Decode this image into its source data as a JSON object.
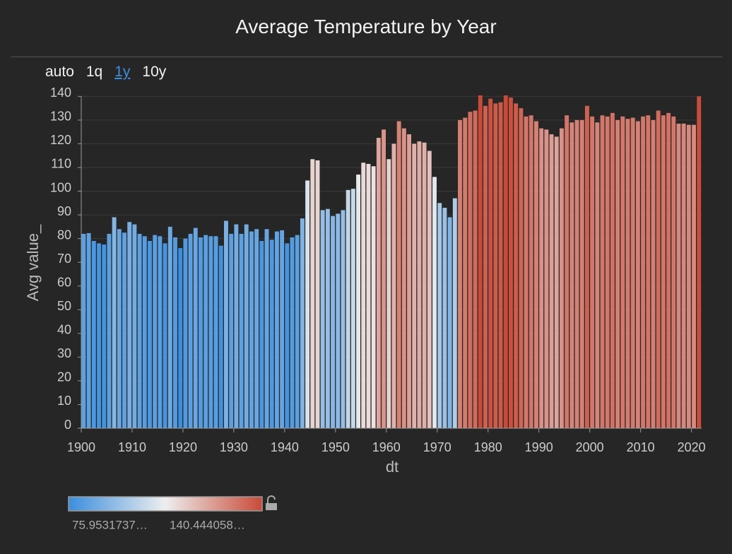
{
  "chart_data": {
    "type": "bar",
    "title": "Average Temperature by Year",
    "toolbar": {
      "options": [
        "auto",
        "1q",
        "1y",
        "10y"
      ],
      "active": 2
    },
    "x_label": "dt",
    "y_label": "Avg value_",
    "x": [
      1900,
      1901,
      1902,
      1903,
      1904,
      1905,
      1906,
      1907,
      1908,
      1909,
      1910,
      1911,
      1912,
      1913,
      1914,
      1915,
      1916,
      1917,
      1918,
      1919,
      1920,
      1921,
      1922,
      1923,
      1924,
      1925,
      1926,
      1927,
      1928,
      1929,
      1930,
      1931,
      1932,
      1933,
      1934,
      1935,
      1936,
      1937,
      1938,
      1939,
      1940,
      1941,
      1942,
      1943,
      1944,
      1945,
      1946,
      1947,
      1948,
      1949,
      1950,
      1951,
      1952,
      1953,
      1954,
      1955,
      1956,
      1957,
      1958,
      1959,
      1960,
      1961,
      1962,
      1963,
      1964,
      1965,
      1966,
      1967,
      1968,
      1969,
      1970,
      1971,
      1972,
      1973,
      1974,
      1975,
      1976,
      1977,
      1978,
      1979,
      1980,
      1981,
      1982,
      1983,
      1984,
      1985,
      1986,
      1987,
      1988,
      1989,
      1990,
      1991,
      1992,
      1993,
      1994,
      1995,
      1996,
      1997,
      1998,
      1999,
      2000,
      2001,
      2002,
      2003,
      2004,
      2005,
      2006,
      2007,
      2008,
      2009,
      2010,
      2011,
      2012,
      2013,
      2014,
      2015,
      2016,
      2017,
      2018,
      2019,
      2020,
      2021
    ],
    "values": [
      82,
      82.3,
      79,
      78,
      77.5,
      82,
      89,
      84,
      82.5,
      87,
      86,
      82,
      81,
      79,
      81.5,
      81,
      78,
      85,
      80.5,
      76,
      80,
      82,
      84.5,
      80.5,
      81.5,
      81,
      81,
      77,
      87.5,
      82,
      86,
      82,
      86,
      83,
      84,
      79,
      84,
      79.5,
      83,
      83.5,
      78,
      80.5,
      81.5,
      88.5,
      104.5,
      113.5,
      113,
      92,
      92.5,
      89.5,
      90.5,
      92,
      100.5,
      101,
      107,
      112,
      111.5,
      110.5,
      122.5,
      126,
      113.5,
      120,
      129.5,
      126.5,
      124,
      120,
      121,
      120.5,
      117,
      106,
      95,
      93,
      89,
      97,
      130,
      131,
      133.5,
      134,
      140.4,
      136,
      139,
      137,
      137.5,
      140.4,
      139.5,
      137,
      135,
      131.5,
      132,
      129.5,
      126.5,
      126,
      124,
      123,
      126.5,
      132,
      129,
      130,
      130,
      136,
      131.5,
      129,
      132,
      131.5,
      133,
      130,
      131.5,
      130.5,
      131,
      129.5,
      131.5,
      132,
      130,
      134,
      132,
      133,
      131.5,
      128.5,
      128.5,
      128,
      128,
      140
    ],
    "xlim": [
      1900,
      2022
    ],
    "xticks": [
      1900,
      1910,
      1920,
      1930,
      1940,
      1950,
      1960,
      1970,
      1980,
      1990,
      2000,
      2010,
      2020
    ],
    "ylim": [
      0,
      141
    ],
    "yticks": [
      0,
      10,
      20,
      30,
      40,
      50,
      60,
      70,
      80,
      90,
      100,
      110,
      120,
      130,
      140
    ],
    "grid": true,
    "color_scale": {
      "domain": [
        75.9531737,
        140.444058
      ],
      "colors": [
        "#3b8ede",
        "#eeeeee",
        "#c94a38"
      ]
    },
    "legend": {
      "min_label": "75.9531737…",
      "max_label": "140.444058…"
    }
  }
}
